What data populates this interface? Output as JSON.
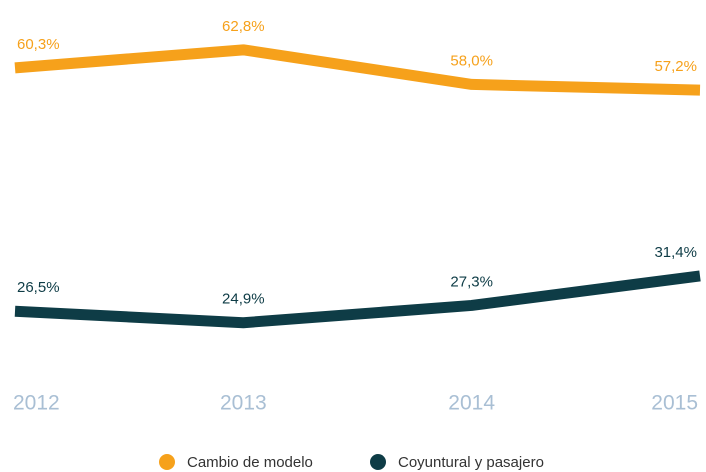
{
  "chart_data": {
    "type": "line",
    "categories": [
      "2012",
      "2013",
      "2014",
      "2015"
    ],
    "series": [
      {
        "name": "Cambio de modelo",
        "color": "#f6a11b",
        "values": [
          60.3,
          62.8,
          58.0,
          57.2
        ],
        "value_labels": [
          "60,3%",
          "62,8%",
          "58,0%",
          "57,2%"
        ]
      },
      {
        "name": "Coyuntural y pasajero",
        "color": "#0e3c46",
        "values": [
          26.5,
          24.9,
          27.3,
          31.4
        ],
        "value_labels": [
          "26,5%",
          "24,9%",
          "27,3%",
          "31,4%"
        ]
      }
    ],
    "legend": "bottom"
  }
}
